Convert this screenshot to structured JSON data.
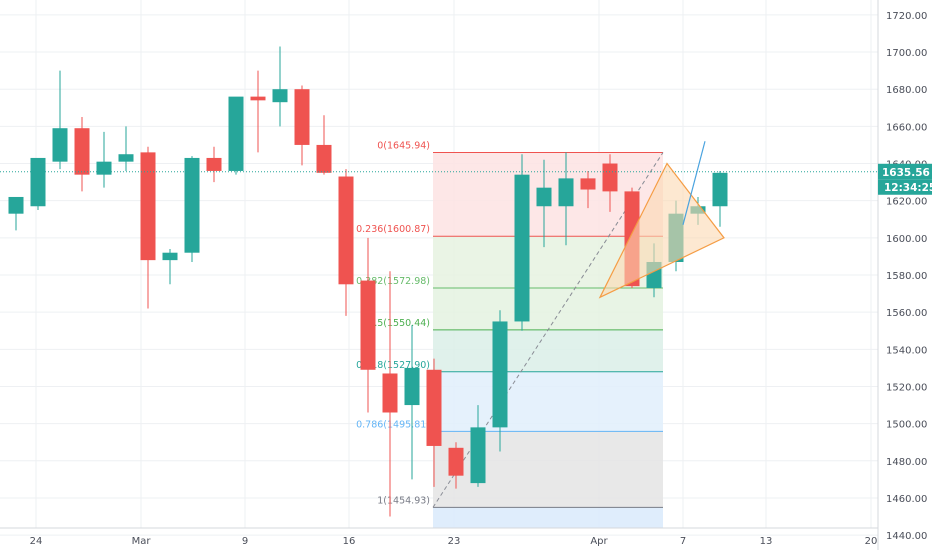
{
  "chart_data": {
    "type": "candlestick",
    "title": "",
    "xlabel": "",
    "ylabel": "",
    "ylim": [
      1432,
      1728
    ],
    "y_ticks": [
      1440,
      1460,
      1480,
      1500,
      1520,
      1540,
      1560,
      1580,
      1600,
      1620,
      1640,
      1660,
      1680,
      1700,
      1720
    ],
    "x_ticks": [
      "24",
      "Mar",
      "9",
      "16",
      "23",
      "Apr",
      "7",
      "13",
      "20"
    ],
    "colors": {
      "up": "#26a69a",
      "down": "#ef5350",
      "price_line": "#26a69a",
      "triangle": "#f59d45",
      "trend_line": "#4aa3df"
    },
    "candles": [
      {
        "o": 1613,
        "h": 1622,
        "l": 1604,
        "c": 1622
      },
      {
        "o": 1617,
        "h": 1643,
        "l": 1615,
        "c": 1643
      },
      {
        "o": 1641,
        "h": 1690,
        "l": 1637,
        "c": 1659
      },
      {
        "o": 1659,
        "h": 1665,
        "l": 1625,
        "c": 1634
      },
      {
        "o": 1634,
        "h": 1657,
        "l": 1627,
        "c": 1641
      },
      {
        "o": 1641,
        "h": 1660,
        "l": 1636,
        "c": 1645
      },
      {
        "o": 1646,
        "h": 1649,
        "l": 1562,
        "c": 1588
      },
      {
        "o": 1588,
        "h": 1594,
        "l": 1575,
        "c": 1592
      },
      {
        "o": 1592,
        "h": 1644,
        "l": 1587,
        "c": 1643
      },
      {
        "o": 1643,
        "h": 1649,
        "l": 1630,
        "c": 1636
      },
      {
        "o": 1636,
        "h": 1675,
        "l": 1634,
        "c": 1676
      },
      {
        "o": 1676,
        "h": 1690,
        "l": 1646,
        "c": 1674
      },
      {
        "o": 1673,
        "h": 1703,
        "l": 1660,
        "c": 1680
      },
      {
        "o": 1680,
        "h": 1682,
        "l": 1639,
        "c": 1650
      },
      {
        "o": 1650,
        "h": 1666,
        "l": 1634,
        "c": 1635
      },
      {
        "o": 1633,
        "h": 1637,
        "l": 1558,
        "c": 1575
      },
      {
        "o": 1577,
        "h": 1600,
        "l": 1506,
        "c": 1529
      },
      {
        "o": 1527,
        "h": 1582,
        "l": 1450,
        "c": 1506
      },
      {
        "o": 1510,
        "h": 1553,
        "l": 1470,
        "c": 1530
      },
      {
        "o": 1529,
        "h": 1535,
        "l": 1466,
        "c": 1488
      },
      {
        "o": 1487,
        "h": 1490,
        "l": 1465,
        "c": 1472
      },
      {
        "o": 1468,
        "h": 1510,
        "l": 1466,
        "c": 1498
      },
      {
        "o": 1498,
        "h": 1561,
        "l": 1485,
        "c": 1555
      },
      {
        "o": 1555,
        "h": 1645,
        "l": 1550,
        "c": 1634
      },
      {
        "o": 1617,
        "h": 1642,
        "l": 1595,
        "c": 1627
      },
      {
        "o": 1617,
        "h": 1646,
        "l": 1596,
        "c": 1632
      },
      {
        "o": 1632,
        "h": 1636,
        "l": 1616,
        "c": 1626
      },
      {
        "o": 1640,
        "h": 1645,
        "l": 1614,
        "c": 1625
      },
      {
        "o": 1625,
        "h": 1627,
        "l": 1573,
        "c": 1574
      },
      {
        "o": 1573,
        "h": 1597,
        "l": 1568,
        "c": 1587
      },
      {
        "o": 1587,
        "h": 1620,
        "l": 1582,
        "c": 1613
      },
      {
        "o": 1613,
        "h": 1622,
        "l": 1607,
        "c": 1617
      },
      {
        "o": 1617,
        "h": 1636,
        "l": 1606,
        "c": 1635
      }
    ],
    "fib_levels": [
      {
        "ratio": 0,
        "label": "0(1645.94)",
        "value": 1645.94,
        "color": "#ef5350",
        "fill": "#fde3e3"
      },
      {
        "ratio": 0.236,
        "label": "0.236(1600.87)",
        "value": 1600.87,
        "color": "#ef5350",
        "fill": "#e6f2e1"
      },
      {
        "ratio": 0.382,
        "label": "0.382(1572.98)",
        "value": 1572.98,
        "color": "#66bb6a",
        "fill": "#e4f2e1"
      },
      {
        "ratio": 0.5,
        "label": "0.5(1550.44)",
        "value": 1550.44,
        "color": "#4caf50",
        "fill": "#dbefe7"
      },
      {
        "ratio": 0.618,
        "label": "0.618(1527.90)",
        "value": 1527.9,
        "color": "#26a69a",
        "fill": "#e1eefc"
      },
      {
        "ratio": 0.786,
        "label": "0.786(1495.81)",
        "value": 1495.81,
        "color": "#64b5f6",
        "fill": "#e4e4e4"
      },
      {
        "ratio": 1,
        "label": "1(1454.93)",
        "value": 1454.93,
        "color": "#787b86",
        "fill": "#d9eafc"
      }
    ],
    "price_label": "1635.56",
    "price_value": 1635.56,
    "time_label": "12:34:25"
  }
}
